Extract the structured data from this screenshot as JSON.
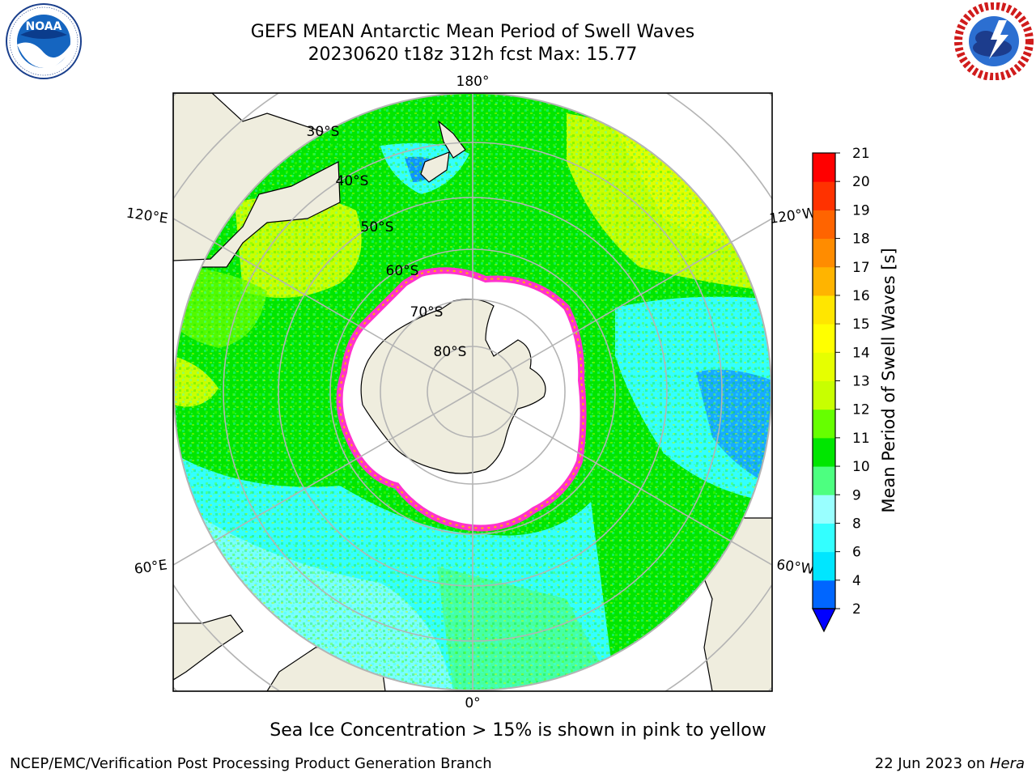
{
  "header": {
    "title_line1": "GEFS MEAN Antarctic Mean Period of Swell Waves",
    "title_line2": "20230620 t18z 312h fcst   Max: 15.77"
  },
  "logos": {
    "left": {
      "text": "NOAA",
      "ring_text": "NATIONAL OCEANIC AND ATMOSPHERIC ADMINISTRATION · U.S. DEPARTMENT OF COMMERCE"
    },
    "right": {
      "ring_text": "NATIONAL WEATHER SERVICE"
    }
  },
  "map": {
    "projection": "south-polar-stereographic",
    "longitude_labels": {
      "top": "180°",
      "bottom": "0°",
      "upper_left": "120°E",
      "upper_right": "120°W",
      "lower_left": "60°E",
      "lower_right": "60°W"
    },
    "latitude_labels": [
      "30°S",
      "40°S",
      "50°S",
      "60°S",
      "70°S",
      "80°S"
    ]
  },
  "colorbar": {
    "label": "Mean Period of Swell Waves [s]",
    "ticks": [
      "2",
      "4",
      "6",
      "8",
      "9",
      "10",
      "11",
      "12",
      "13",
      "14",
      "15",
      "16",
      "17",
      "18",
      "19",
      "20",
      "21"
    ],
    "colors": [
      "#0066ff",
      "#00e6ff",
      "#33ffff",
      "#99ffff",
      "#4dff80",
      "#00e600",
      "#66ff00",
      "#c8ff00",
      "#e6ff00",
      "#ffff00",
      "#ffe600",
      "#ffb400",
      "#ff8c00",
      "#ff6400",
      "#ff3200",
      "#ff0000"
    ],
    "under_color": "#0000ff"
  },
  "caption": "Sea Ice Concentration > 15% is shown in pink to yellow",
  "footer": {
    "left": "NCEP/EMC/Verification Post Processing Product Generation Branch",
    "right_date": "22 Jun 2023 on ",
    "right_host": "Hera"
  }
}
